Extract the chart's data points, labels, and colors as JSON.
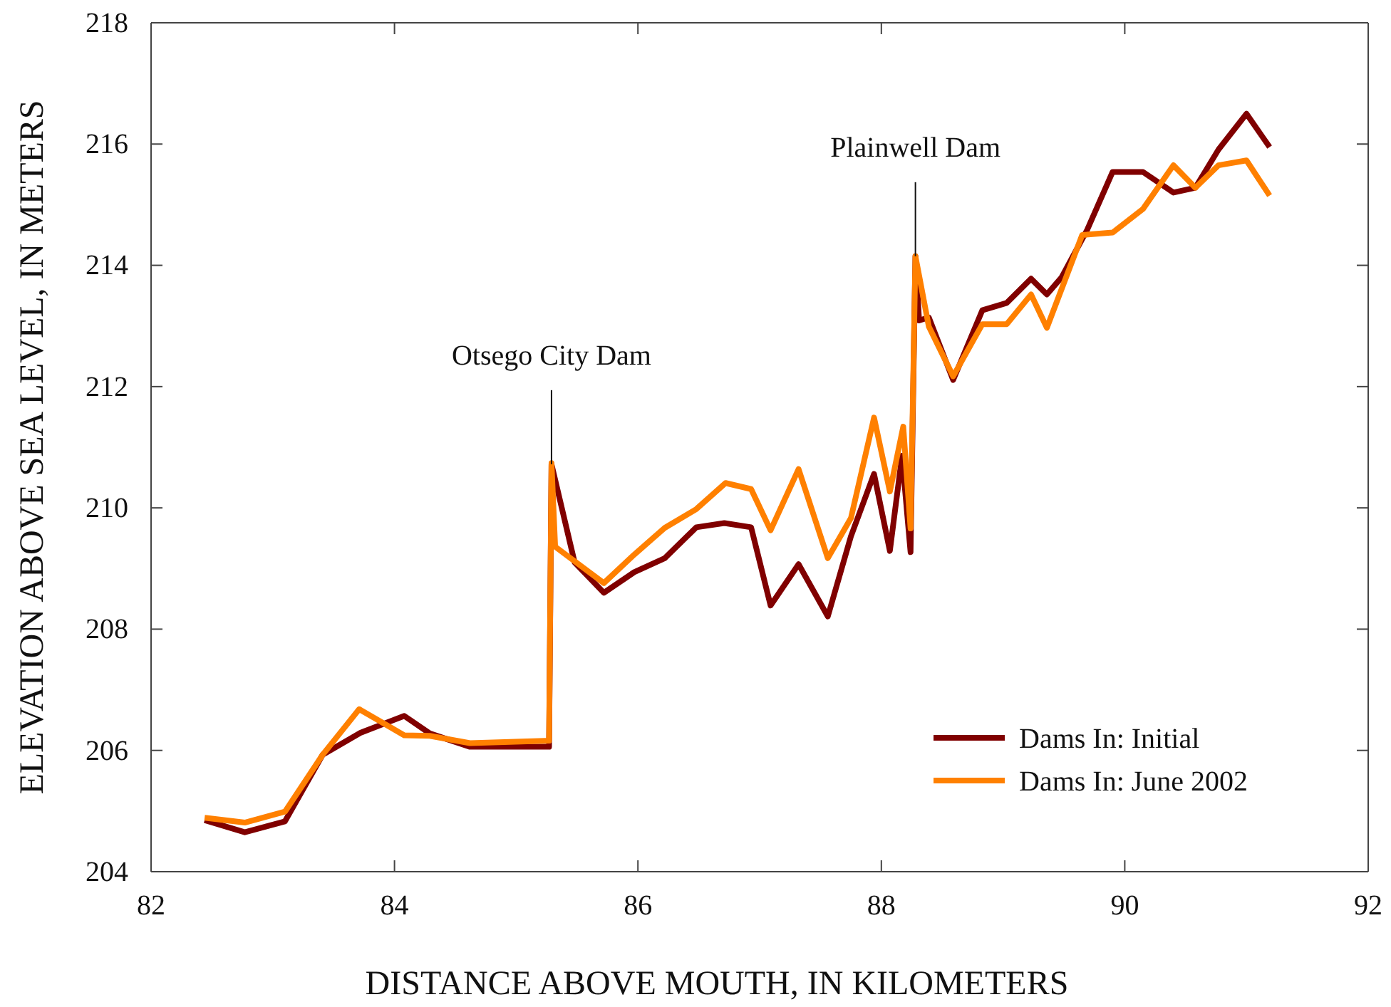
{
  "chart_data": {
    "type": "line",
    "xlabel": "DISTANCE ABOVE MOUTH, IN KILOMETERS",
    "ylabel": "ELEVATION ABOVE SEA LEVEL, IN METERS",
    "xlim": [
      82,
      92
    ],
    "xticks": [
      82,
      84,
      86,
      88,
      90,
      92
    ],
    "ylim": [
      204,
      218
    ],
    "yticks": [
      204,
      206,
      208,
      210,
      212,
      214,
      216,
      218
    ],
    "grid": false,
    "legend": "bottom right",
    "marker": "none",
    "line_style": "solid",
    "annotations": [
      {
        "text": "Otsego City Dam",
        "x": 85.29,
        "y": 210.72
      },
      {
        "text": "Plainwell Dam",
        "x": 88.28,
        "y": 214.15
      }
    ],
    "series": [
      {
        "name": "Dams In: Initial",
        "color": "#800000",
        "x": [
          82.44,
          82.77,
          83.1,
          83.41,
          83.72,
          84.08,
          84.29,
          84.62,
          85.27,
          85.29,
          85.48,
          85.72,
          85.97,
          86.22,
          86.48,
          86.71,
          86.93,
          87.09,
          87.32,
          87.56,
          87.75,
          87.94,
          88.07,
          88.17,
          88.24,
          88.28,
          88.31,
          88.39,
          88.59,
          88.83,
          89.03,
          89.23,
          89.36,
          89.48,
          89.69,
          89.9,
          90.15,
          90.4,
          90.58,
          90.77,
          91.0,
          91.19
        ],
        "values": [
          204.85,
          204.65,
          204.83,
          205.93,
          206.29,
          206.57,
          206.28,
          206.06,
          206.06,
          210.72,
          209.1,
          208.6,
          208.94,
          209.17,
          209.68,
          209.75,
          209.68,
          208.39,
          209.07,
          208.21,
          209.53,
          210.56,
          209.29,
          210.86,
          209.27,
          214.15,
          213.09,
          213.14,
          212.11,
          213.26,
          213.38,
          213.78,
          213.52,
          213.8,
          214.58,
          215.54,
          215.54,
          215.2,
          215.28,
          215.91,
          216.5,
          215.95
        ]
      },
      {
        "name": "Dams In: June 2002",
        "color": "#ff8000",
        "x": [
          82.44,
          82.77,
          83.1,
          83.41,
          83.71,
          84.08,
          84.29,
          84.62,
          85.27,
          85.29,
          85.32,
          85.72,
          85.97,
          86.22,
          86.48,
          86.72,
          86.93,
          87.09,
          87.32,
          87.56,
          87.75,
          87.94,
          88.07,
          88.18,
          88.24,
          88.28,
          88.39,
          88.59,
          88.83,
          89.03,
          89.23,
          89.36,
          89.65,
          89.9,
          90.15,
          90.4,
          90.58,
          90.77,
          91.0,
          91.19
        ],
        "values": [
          204.89,
          204.81,
          204.99,
          205.93,
          206.68,
          206.25,
          206.24,
          206.12,
          206.16,
          210.74,
          209.36,
          208.76,
          209.23,
          209.67,
          209.98,
          210.41,
          210.31,
          209.63,
          210.64,
          209.17,
          209.83,
          211.49,
          210.27,
          211.34,
          209.66,
          214.15,
          212.99,
          212.17,
          213.03,
          213.03,
          213.52,
          212.97,
          214.5,
          214.54,
          214.93,
          215.65,
          215.28,
          215.65,
          215.73,
          215.15
        ]
      }
    ]
  }
}
